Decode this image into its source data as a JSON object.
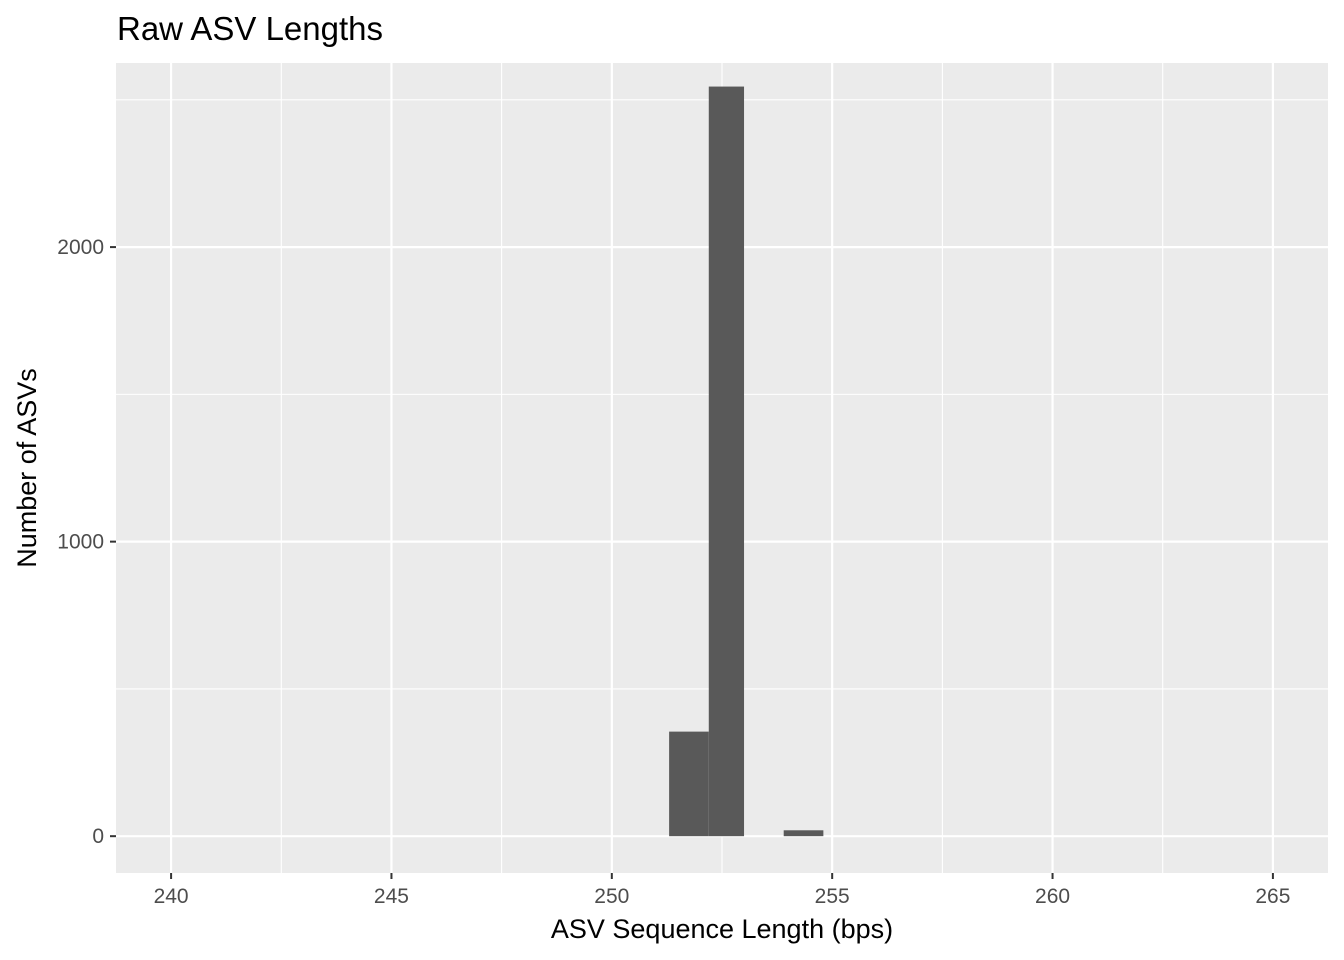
{
  "chart_data": {
    "type": "bar",
    "title": "Raw ASV Lengths",
    "xlabel": "ASV Sequence Length (bps)",
    "ylabel": "Number of ASVs",
    "xlim": [
      238.75,
      266.25
    ],
    "ylim": [
      -125,
      2625
    ],
    "x_ticks": [
      240,
      245,
      250,
      255,
      260,
      265
    ],
    "x_tick_labels": [
      "240",
      "245",
      "250",
      "255",
      "260",
      "265"
    ],
    "y_ticks": [
      0,
      1000,
      2000
    ],
    "y_tick_labels": [
      "0",
      "1000",
      "2000"
    ],
    "bin_width": 0.875,
    "bins": [
      {
        "x0": 251.3,
        "x1": 252.2,
        "count": 355
      },
      {
        "x0": 252.2,
        "x1": 253.0,
        "count": 2545
      },
      {
        "x0": 253.9,
        "x1": 254.8,
        "count": 20
      }
    ],
    "grid": true,
    "colors": {
      "panel": "#ebebeb",
      "grid": "#ffffff",
      "bar": "#595959",
      "text": "#000000",
      "tick_text": "#4d4d4d"
    }
  }
}
